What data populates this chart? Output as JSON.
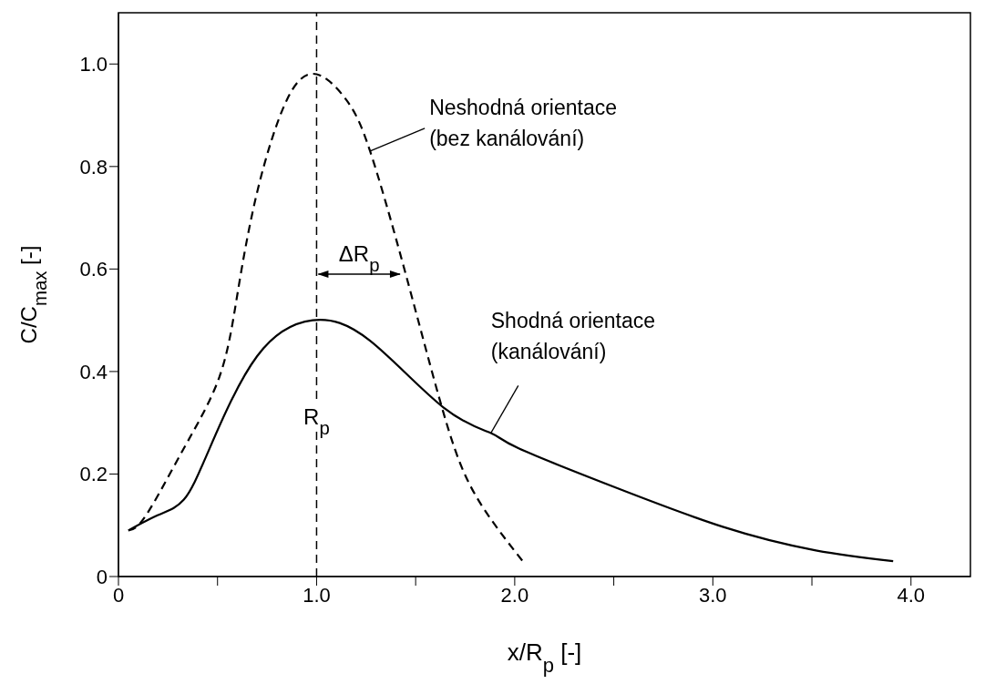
{
  "chart_data": {
    "type": "line",
    "xlabel": "x/R$_{p}$ [-]",
    "ylabel": "C/C$_{max}$ [-]",
    "xlim": [
      0,
      4.3
    ],
    "ylim": [
      0,
      1.1
    ],
    "xticks": [
      0,
      {
        "value": 0.5,
        "label": null
      },
      {
        "value": 1,
        "label": "1.0"
      },
      {
        "value": 1.5,
        "label": null
      },
      {
        "value": 2,
        "label": "2.0"
      },
      {
        "value": 2.5,
        "label": null
      },
      {
        "value": 3,
        "label": "3.0"
      },
      {
        "value": 3.5,
        "label": null
      },
      {
        "value": 4,
        "label": "4.0"
      }
    ],
    "yticks": [
      0,
      0.2,
      0.4,
      0.6,
      0.8,
      {
        "value": 1,
        "label": "1.0"
      }
    ],
    "grid": false,
    "legend": false,
    "marker": "none",
    "series": [
      {
        "color": "#000000",
        "line_style": "dashed",
        "x": [
          0.05,
          0.14,
          0.33,
          0.51,
          0.6,
          0.7,
          0.85,
          1.0,
          1.15,
          1.27,
          1.45,
          1.64,
          1.8,
          2.04
        ],
        "values": [
          0.09,
          0.12,
          0.25,
          0.39,
          0.55,
          0.75,
          0.93,
          0.98,
          0.93,
          0.83,
          0.59,
          0.32,
          0.16,
          0.03
        ]
      },
      {
        "color": "#000000",
        "line_style": "solid",
        "x": [
          0.05,
          0.2,
          0.33,
          0.46,
          0.7,
          0.98,
          1.27,
          1.64,
          1.88,
          2.02,
          2.5,
          3.05,
          3.52,
          3.91
        ],
        "values": [
          0.09,
          0.12,
          0.15,
          0.25,
          0.43,
          0.5,
          0.46,
          0.33,
          0.28,
          0.25,
          0.175,
          0.097,
          0.051,
          0.03
        ]
      }
    ],
    "ref_lines": [
      {
        "axis": "x",
        "value": 1,
        "label": "R$_{p}$",
        "color": "#000000",
        "line_style": "dashed"
      }
    ],
    "annotations": [
      {
        "text": "Neshodná orientace\n(bez kanálování)",
        "x": 1.27,
        "y": 0.83
      },
      {
        "text": "Shodná orientace\n(kanálování)",
        "x": 1.88,
        "y": 0.28
      },
      {
        "text": "ΔR$_{p}$",
        "x": 1.43,
        "y": 0.59
      }
    ]
  }
}
